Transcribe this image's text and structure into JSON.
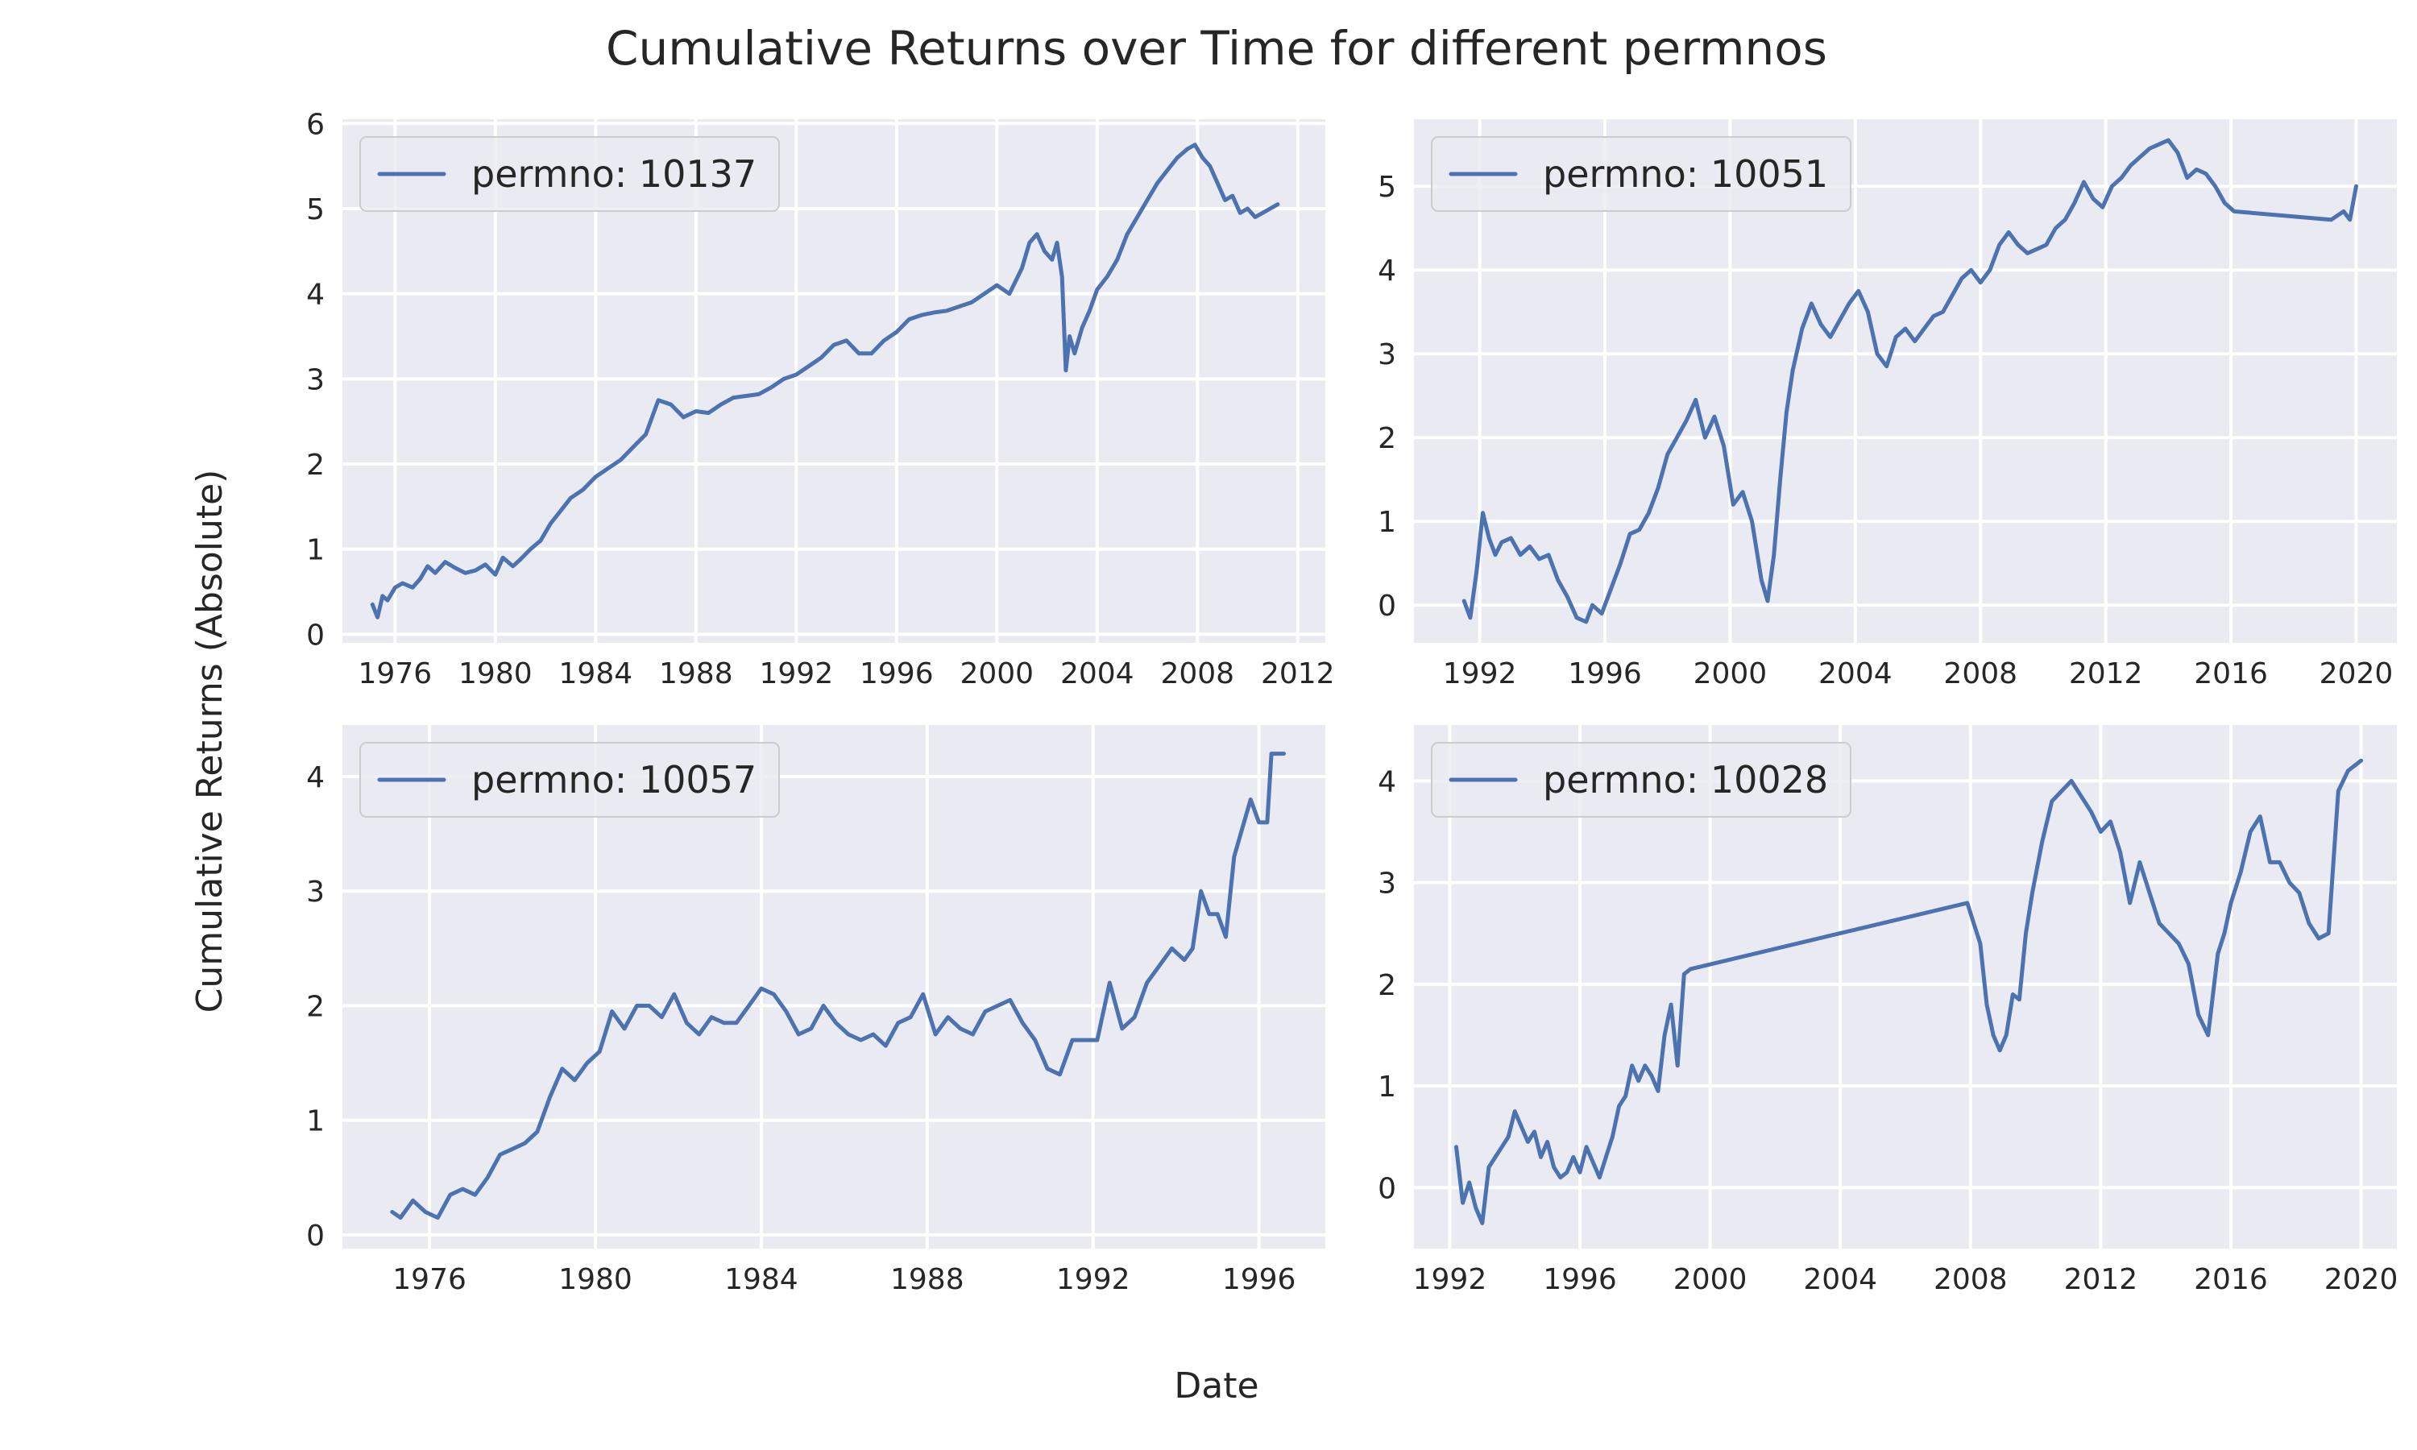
{
  "figure": {
    "title": "Cumulative Returns over Time for different permnos",
    "xlabel": "Date",
    "ylabel": "Cumulative Returns (Absolute)"
  },
  "colors": {
    "axes_background": "#eaeaf2",
    "grid": "#ffffff",
    "line": "#4c72b0",
    "legend_border": "#cccccc"
  },
  "chart_data": [
    {
      "type": "line",
      "position": "top-left",
      "legend": "permno: 10137",
      "legend_placement": "top-left",
      "grid": true,
      "xlim": [
        1973.9,
        2013.1
      ],
      "ylim": [
        -0.1,
        6.05
      ],
      "xticks": [
        1976,
        1980,
        1984,
        1988,
        1992,
        1996,
        2000,
        2004,
        2008,
        2012
      ],
      "yticks": [
        0,
        1,
        2,
        3,
        4,
        5,
        6
      ],
      "x": [
        1975.1,
        1975.3,
        1975.5,
        1975.7,
        1976.0,
        1976.3,
        1976.7,
        1977.0,
        1977.3,
        1977.6,
        1978.0,
        1978.4,
        1978.8,
        1979.2,
        1979.6,
        1980.0,
        1980.3,
        1980.7,
        1981.0,
        1981.4,
        1981.8,
        1982.2,
        1982.6,
        1983.0,
        1983.5,
        1984.0,
        1984.5,
        1985.0,
        1985.5,
        1986.0,
        1986.5,
        1987.0,
        1987.5,
        1988.0,
        1988.5,
        1989.0,
        1989.5,
        1990.0,
        1990.5,
        1991.0,
        1991.5,
        1992.0,
        1992.5,
        1993.0,
        1993.5,
        1994.0,
        1994.5,
        1995.0,
        1995.5,
        1996.0,
        1996.5,
        1997.0,
        1997.5,
        1998.0,
        1998.5,
        1999.0,
        1999.5,
        2000.0,
        2000.5,
        2001.0,
        2001.3,
        2001.6,
        2001.9,
        2002.2,
        2002.4,
        2002.6,
        2002.75,
        2002.9,
        2003.1,
        2003.4,
        2003.7,
        2004.0,
        2004.4,
        2004.8,
        2005.2,
        2005.6,
        2006.0,
        2006.4,
        2006.8,
        2007.2,
        2007.6,
        2007.9,
        2008.2,
        2008.5,
        2008.8,
        2009.1,
        2009.4,
        2009.7,
        2010.0,
        2010.3,
        2010.6,
        2010.9,
        2011.2
      ],
      "y": [
        0.35,
        0.2,
        0.45,
        0.4,
        0.55,
        0.6,
        0.55,
        0.65,
        0.8,
        0.72,
        0.85,
        0.78,
        0.72,
        0.75,
        0.82,
        0.7,
        0.9,
        0.8,
        0.88,
        1.0,
        1.1,
        1.3,
        1.45,
        1.6,
        1.7,
        1.85,
        1.95,
        2.05,
        2.2,
        2.35,
        2.75,
        2.7,
        2.55,
        2.62,
        2.6,
        2.7,
        2.78,
        2.8,
        2.82,
        2.9,
        3.0,
        3.05,
        3.15,
        3.25,
        3.4,
        3.45,
        3.3,
        3.3,
        3.45,
        3.55,
        3.7,
        3.75,
        3.78,
        3.8,
        3.85,
        3.9,
        4.0,
        4.1,
        4.0,
        4.3,
        4.6,
        4.7,
        4.5,
        4.4,
        4.6,
        4.2,
        3.1,
        3.5,
        3.3,
        3.6,
        3.8,
        4.05,
        4.2,
        4.4,
        4.7,
        4.9,
        5.1,
        5.3,
        5.45,
        5.6,
        5.7,
        5.75,
        5.6,
        5.5,
        5.3,
        5.1,
        5.15,
        4.95,
        5.0,
        4.9,
        4.95,
        5.0,
        5.05
      ]
    },
    {
      "type": "line",
      "position": "top-right",
      "legend": "permno: 10051",
      "legend_placement": "top-left",
      "grid": true,
      "xlim": [
        1989.9,
        2021.3
      ],
      "ylim": [
        -0.45,
        5.8
      ],
      "xticks": [
        1992,
        1996,
        2000,
        2004,
        2008,
        2012,
        2016,
        2020
      ],
      "yticks": [
        0,
        1,
        2,
        3,
        4,
        5
      ],
      "x": [
        1991.5,
        1991.7,
        1991.9,
        1992.1,
        1992.3,
        1992.5,
        1992.7,
        1993.0,
        1993.3,
        1993.6,
        1993.9,
        1994.2,
        1994.5,
        1994.8,
        1995.1,
        1995.4,
        1995.6,
        1995.9,
        1996.2,
        1996.5,
        1996.8,
        1997.1,
        1997.4,
        1997.7,
        1998.0,
        1998.3,
        1998.6,
        1998.9,
        1999.2,
        1999.5,
        1999.8,
        2000.1,
        2000.4,
        2000.7,
        2001.0,
        2001.2,
        2001.4,
        2001.6,
        2001.8,
        2002.0,
        2002.3,
        2002.6,
        2002.9,
        2003.2,
        2003.5,
        2003.8,
        2004.1,
        2004.4,
        2004.7,
        2005.0,
        2005.3,
        2005.6,
        2005.9,
        2006.2,
        2006.5,
        2006.8,
        2007.1,
        2007.4,
        2007.7,
        2008.0,
        2008.3,
        2008.6,
        2008.9,
        2009.2,
        2009.5,
        2009.8,
        2010.1,
        2010.4,
        2010.7,
        2011.0,
        2011.3,
        2011.6,
        2011.9,
        2012.2,
        2012.5,
        2012.8,
        2013.1,
        2013.4,
        2013.7,
        2014.0,
        2014.3,
        2014.6,
        2014.9,
        2015.2,
        2015.5,
        2015.8,
        2016.1,
        2019.2,
        2019.4,
        2019.6,
        2019.8,
        2020.0
      ],
      "y": [
        0.05,
        -0.15,
        0.4,
        1.1,
        0.8,
        0.6,
        0.75,
        0.8,
        0.6,
        0.7,
        0.55,
        0.6,
        0.3,
        0.1,
        -0.15,
        -0.2,
        0.0,
        -0.1,
        0.2,
        0.5,
        0.85,
        0.9,
        1.1,
        1.4,
        1.8,
        2.0,
        2.2,
        2.45,
        2.0,
        2.25,
        1.9,
        1.2,
        1.35,
        1.0,
        0.3,
        0.05,
        0.6,
        1.5,
        2.3,
        2.8,
        3.3,
        3.6,
        3.35,
        3.2,
        3.4,
        3.6,
        3.75,
        3.5,
        3.0,
        2.85,
        3.2,
        3.3,
        3.15,
        3.3,
        3.45,
        3.5,
        3.7,
        3.9,
        4.0,
        3.85,
        4.0,
        4.3,
        4.45,
        4.3,
        4.2,
        4.25,
        4.3,
        4.5,
        4.6,
        4.8,
        5.05,
        4.85,
        4.75,
        5.0,
        5.1,
        5.25,
        5.35,
        5.45,
        5.5,
        5.55,
        5.4,
        5.1,
        5.2,
        5.15,
        5.0,
        4.8,
        4.7,
        4.6,
        4.65,
        4.7,
        4.6,
        5.0
      ]
    },
    {
      "type": "line",
      "position": "bottom-left",
      "legend": "permno: 10057",
      "legend_placement": "top-left",
      "grid": true,
      "xlim": [
        1973.9,
        1997.6
      ],
      "ylim": [
        -0.12,
        4.45
      ],
      "xticks": [
        1976,
        1980,
        1984,
        1988,
        1992,
        1996
      ],
      "yticks": [
        0,
        1,
        2,
        3,
        4
      ],
      "x": [
        1975.1,
        1975.3,
        1975.6,
        1975.9,
        1976.2,
        1976.5,
        1976.8,
        1977.1,
        1977.4,
        1977.7,
        1978.0,
        1978.3,
        1978.6,
        1978.9,
        1979.2,
        1979.5,
        1979.8,
        1980.1,
        1980.4,
        1980.7,
        1981.0,
        1981.3,
        1981.6,
        1981.9,
        1982.2,
        1982.5,
        1982.8,
        1983.1,
        1983.4,
        1983.7,
        1984.0,
        1984.3,
        1984.6,
        1984.9,
        1985.2,
        1985.5,
        1985.8,
        1986.1,
        1986.4,
        1986.7,
        1987.0,
        1987.3,
        1987.6,
        1987.9,
        1988.2,
        1988.5,
        1988.8,
        1989.1,
        1989.4,
        1989.7,
        1990.0,
        1990.3,
        1990.6,
        1990.9,
        1991.2,
        1991.5,
        1991.8,
        1992.1,
        1992.4,
        1992.7,
        1993.0,
        1993.3,
        1993.6,
        1993.9,
        1994.2,
        1994.4,
        1994.6,
        1994.8,
        1995.0,
        1995.2,
        1995.4,
        1995.6,
        1995.8,
        1996.0,
        1996.2,
        1996.3,
        1996.6
      ],
      "y": [
        0.2,
        0.15,
        0.3,
        0.2,
        0.15,
        0.35,
        0.4,
        0.35,
        0.5,
        0.7,
        0.75,
        0.8,
        0.9,
        1.2,
        1.45,
        1.35,
        1.5,
        1.6,
        1.95,
        1.8,
        2.0,
        2.0,
        1.9,
        2.1,
        1.85,
        1.75,
        1.9,
        1.85,
        1.85,
        2.0,
        2.15,
        2.1,
        1.95,
        1.75,
        1.8,
        2.0,
        1.85,
        1.75,
        1.7,
        1.75,
        1.65,
        1.85,
        1.9,
        2.1,
        1.75,
        1.9,
        1.8,
        1.75,
        1.95,
        2.0,
        2.05,
        1.85,
        1.7,
        1.45,
        1.4,
        1.7,
        1.7,
        1.7,
        2.2,
        1.8,
        1.9,
        2.2,
        2.35,
        2.5,
        2.4,
        2.5,
        3.0,
        2.8,
        2.8,
        2.6,
        3.3,
        3.55,
        3.8,
        3.6,
        3.6,
        4.2,
        4.2
      ]
    },
    {
      "type": "line",
      "position": "bottom-right",
      "legend": "permno: 10028",
      "legend_placement": "top-left",
      "grid": true,
      "xlim": [
        1990.9,
        2021.1
      ],
      "ylim": [
        -0.6,
        4.55
      ],
      "xticks": [
        1992,
        1996,
        2000,
        2004,
        2008,
        2012,
        2016,
        2020
      ],
      "yticks": [
        0,
        1,
        2,
        3,
        4
      ],
      "x": [
        1992.2,
        1992.4,
        1992.6,
        1992.8,
        1993.0,
        1993.2,
        1993.4,
        1993.6,
        1993.8,
        1994.0,
        1994.2,
        1994.4,
        1994.6,
        1994.8,
        1995.0,
        1995.2,
        1995.4,
        1995.6,
        1995.8,
        1996.0,
        1996.2,
        1996.4,
        1996.6,
        1996.8,
        1997.0,
        1997.2,
        1997.4,
        1997.6,
        1997.8,
        1998.0,
        1998.2,
        1998.4,
        1998.6,
        1998.8,
        1999.0,
        1999.2,
        1999.4,
        2007.9,
        2008.1,
        2008.3,
        2008.5,
        2008.7,
        2008.9,
        2009.1,
        2009.3,
        2009.5,
        2009.7,
        2009.9,
        2010.2,
        2010.5,
        2010.8,
        2011.1,
        2011.4,
        2011.7,
        2012.0,
        2012.3,
        2012.6,
        2012.9,
        2013.2,
        2013.5,
        2013.8,
        2014.1,
        2014.4,
        2014.7,
        2015.0,
        2015.3,
        2015.6,
        2015.8,
        2016.0,
        2016.3,
        2016.6,
        2016.9,
        2017.2,
        2017.5,
        2017.8,
        2018.1,
        2018.4,
        2018.7,
        2019.0,
        2019.3,
        2019.6,
        2019.8,
        2020.0
      ],
      "y": [
        0.4,
        -0.15,
        0.05,
        -0.2,
        -0.35,
        0.2,
        0.3,
        0.4,
        0.5,
        0.75,
        0.6,
        0.45,
        0.55,
        0.3,
        0.45,
        0.2,
        0.1,
        0.15,
        0.3,
        0.15,
        0.4,
        0.25,
        0.1,
        0.3,
        0.5,
        0.8,
        0.9,
        1.2,
        1.05,
        1.2,
        1.1,
        0.95,
        1.5,
        1.8,
        1.2,
        2.1,
        2.15,
        2.8,
        2.6,
        2.4,
        1.8,
        1.5,
        1.35,
        1.5,
        1.9,
        1.85,
        2.5,
        2.9,
        3.4,
        3.8,
        3.9,
        4.0,
        3.85,
        3.7,
        3.5,
        3.6,
        3.3,
        2.8,
        3.2,
        2.9,
        2.6,
        2.5,
        2.4,
        2.2,
        1.7,
        1.5,
        2.3,
        2.5,
        2.8,
        3.1,
        3.5,
        3.65,
        3.2,
        3.2,
        3.0,
        2.9,
        2.6,
        2.45,
        2.5,
        3.9,
        4.1,
        4.15,
        4.2
      ]
    }
  ]
}
